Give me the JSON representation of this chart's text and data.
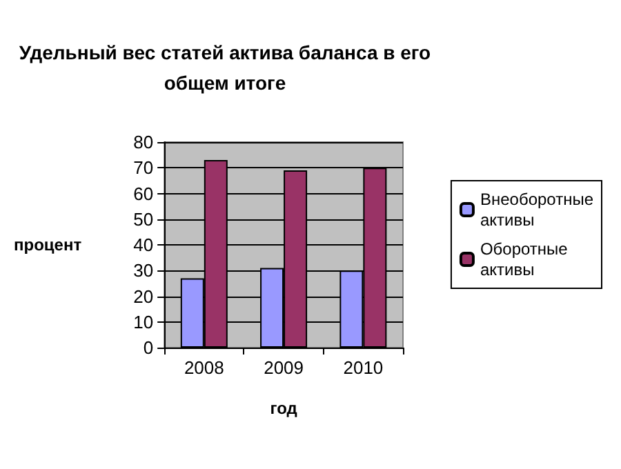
{
  "chart_data": {
    "type": "bar",
    "title": "Удельный вес статей актива баланса в его общем итоге",
    "xlabel": "год",
    "ylabel": "процент",
    "categories": [
      "2008",
      "2009",
      "2010"
    ],
    "series": [
      {
        "name": "Внеоборотные активы",
        "color": "#9999ff",
        "values": [
          27,
          31,
          30
        ]
      },
      {
        "name": "Оборотные активы",
        "color": "#993366",
        "values": [
          73,
          69,
          70
        ]
      }
    ],
    "ylim": [
      0,
      80
    ],
    "yticks": [
      0,
      10,
      20,
      30,
      40,
      50,
      60,
      70,
      80
    ],
    "grid": "y",
    "legend": "right"
  }
}
